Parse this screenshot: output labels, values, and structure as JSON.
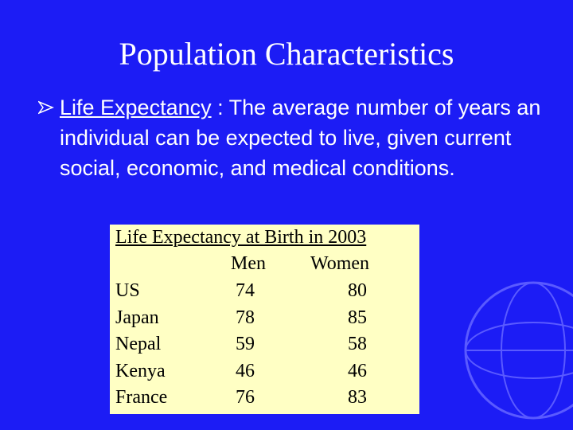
{
  "title": "Population Characteristics",
  "bullet": {
    "term": "Life Expectancy",
    "text": " : The average number of years an individual can be expected to live, given current social, economic, and medical conditions."
  },
  "table": {
    "caption": "Life Expectancy at Birth in 2003",
    "header": [
      "Men",
      "Women"
    ],
    "rows": [
      [
        "US",
        74,
        80
      ],
      [
        "Japan",
        78,
        85
      ],
      [
        "Nepal",
        59,
        58
      ],
      [
        "Kenya",
        46,
        46
      ],
      [
        "France",
        76,
        83
      ]
    ]
  }
}
